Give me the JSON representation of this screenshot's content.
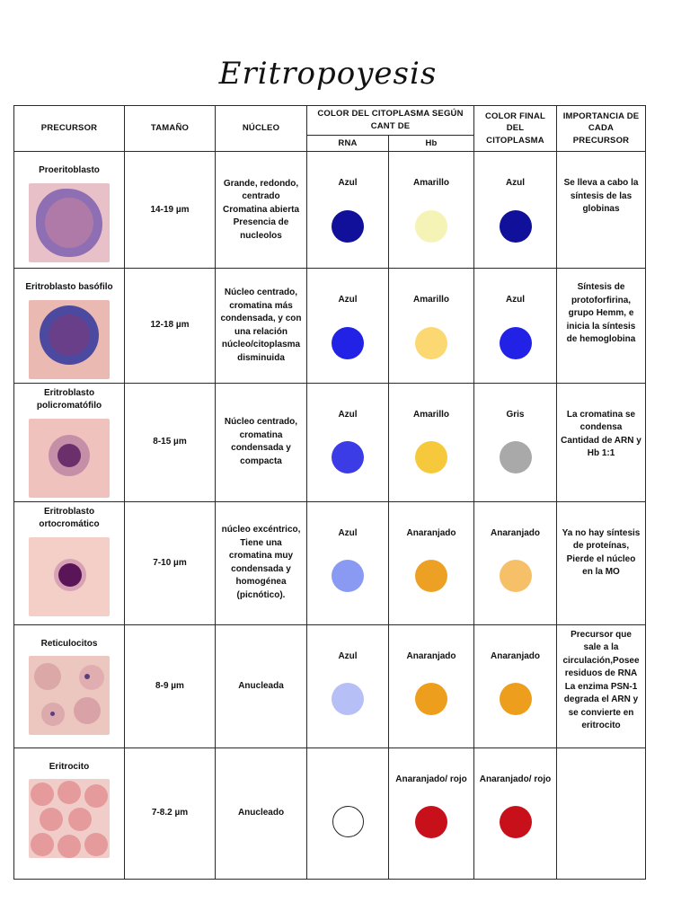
{
  "title": "Eritropoyesis",
  "headers": {
    "precursor": "PRECURSOR",
    "size": "TAMAÑO",
    "nucleus": "NÚCLEO",
    "cytoplasm_group": "COLOR DEL CITOPLASMA SEGÚN CANT DE",
    "rna": "RNA",
    "hb": "Hb",
    "final_color": "COLOR FINAL DEL CITOPLASMA",
    "importance": "IMPORTANCIA DE CADA PRECURSOR"
  },
  "rows": [
    {
      "precursor": "Proeritoblasto",
      "size": "14-19 µm",
      "nucleus": "Grande, redondo, centrado Cromatina abierta Presencia de nucleolos",
      "rna_label": "Azul",
      "rna_color": "#10109a",
      "hb_label": "Amarillo",
      "hb_color": "#f5f3b5",
      "final_label": "Azul",
      "final_color": "#10109a",
      "importance": "Se lleva a cabo la síntesis de las globinas"
    },
    {
      "precursor": "Eritroblasto basófilo",
      "size": "12-18 µm",
      "nucleus": "Núcleo centrado, cromatina más condensada, y con una relación núcleo/citoplasma disminuida",
      "rna_label": "Azul",
      "rna_color": "#2222e6",
      "hb_label": "Amarillo",
      "hb_color": "#fbd872",
      "final_label": "Azul",
      "final_color": "#2222e6",
      "importance": "Síntesis de protoforfirina, grupo Hemm, e inicia la síntesis de hemoglobina"
    },
    {
      "precursor": "Eritroblasto policromatófilo",
      "size": "8-15 µm",
      "nucleus": "Núcleo centrado, cromatina condensada y compacta",
      "rna_label": "Azul",
      "rna_color": "#3c3ce6",
      "hb_label": "Amarillo",
      "hb_color": "#f6c93d",
      "final_label": "Gris",
      "final_color": "#a9a9a9",
      "importance": "La cromatina se condensa Cantidad de ARN y Hb 1:1"
    },
    {
      "precursor": "Eritroblasto ortocromático",
      "size": "7-10 µm",
      "nucleus": "núcleo excéntrico, Tiene una cromatina muy condensada y homogénea (picnótico).",
      "rna_label": "Azul",
      "rna_color": "#8a9af2",
      "hb_label": "Anaranjado",
      "hb_color": "#eca124",
      "final_label": "Anaranjado",
      "final_color": "#f6c068",
      "importance": "Ya no hay síntesis de proteínas, Pierde el núcleo en la MO"
    },
    {
      "precursor": "Reticulocitos",
      "size": "8-9 µm",
      "nucleus": "Anucleada",
      "rna_label": "Azul",
      "rna_color": "#b6c0f6",
      "hb_label": "Anaranjado",
      "hb_color": "#ec9e1c",
      "final_label": "Anaranjado",
      "final_color": "#ec9e1c",
      "importance": "Precursor que sale a la circulación,Posee residuos de RNA La enzima PSN-1 degrada el ARN y se convierte en eritrocito"
    },
    {
      "precursor": "Eritrocito",
      "size": "7-8.2 µm",
      "nucleus": "Anucleado",
      "rna_label": "",
      "rna_color": "#ffffff",
      "hb_label": "Anaranjado/ rojo",
      "hb_color": "#c8101a",
      "final_label": "Anaranjado/ rojo",
      "final_color": "#c8101a",
      "importance": ""
    }
  ]
}
